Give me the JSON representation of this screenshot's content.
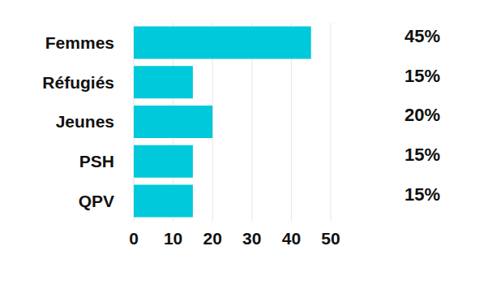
{
  "chart_data": {
    "type": "bar",
    "orientation": "horizontal",
    "categories": [
      "Femmes",
      "Réfugiés",
      "Jeunes",
      "PSH",
      "QPV"
    ],
    "values": [
      45,
      15,
      20,
      15,
      15
    ],
    "value_labels": [
      "45%",
      "15%",
      "20%",
      "15%",
      "15%"
    ],
    "data_labels": true,
    "color": "#00c9db",
    "xlim": [
      0,
      50
    ],
    "xticks": [
      0,
      10,
      20,
      30,
      40,
      50
    ],
    "grid": true
  }
}
